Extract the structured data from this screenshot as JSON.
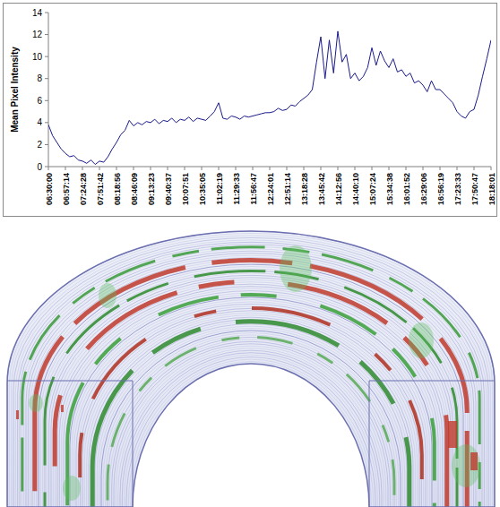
{
  "chart_data": {
    "type": "line",
    "y_label": "Mean Pixel Intensity",
    "color": "#1a1a8c",
    "grid": false,
    "ylim": [
      0,
      14
    ],
    "yticks": [
      0,
      2,
      4,
      6,
      8,
      10,
      12,
      14
    ],
    "categories": [
      "06:30:00",
      null,
      null,
      null,
      "06:57:14",
      null,
      null,
      null,
      "07:24:28",
      null,
      null,
      null,
      "07:51:42",
      null,
      null,
      null,
      "08:18:56",
      null,
      null,
      null,
      "08:46:09",
      null,
      null,
      null,
      "09:13:23",
      null,
      null,
      null,
      "09:40:37",
      null,
      null,
      null,
      "10:07:51",
      null,
      null,
      null,
      "10:35:05",
      null,
      null,
      null,
      "11:02:19",
      null,
      null,
      null,
      "11:29:33",
      null,
      null,
      null,
      "11:56:47",
      null,
      null,
      null,
      "12:24:01",
      null,
      null,
      null,
      "12:51:14",
      null,
      null,
      null,
      "13:18:28",
      null,
      null,
      null,
      "13:45:42",
      null,
      null,
      null,
      "14:12:56",
      null,
      null,
      null,
      "14:40:10",
      null,
      null,
      null,
      "15:07:24",
      null,
      null,
      null,
      "15:34:38",
      null,
      null,
      null,
      "16:01:52",
      null,
      null,
      null,
      "16:29:06",
      null,
      null,
      null,
      "16:56:19",
      null,
      null,
      null,
      "17:23:33",
      null,
      null,
      null,
      "17:50:47",
      null,
      null,
      null,
      "18:18:01"
    ],
    "values": [
      3.8,
      2.8,
      2.2,
      1.6,
      1.2,
      0.9,
      1.0,
      0.6,
      0.5,
      0.3,
      0.6,
      0.2,
      0.5,
      0.4,
      0.9,
      1.6,
      2.2,
      2.9,
      3.3,
      4.2,
      3.7,
      4.0,
      3.8,
      4.1,
      4.0,
      4.3,
      3.9,
      4.2,
      4.1,
      4.4,
      4.0,
      4.3,
      4.2,
      4.5,
      4.1,
      4.4,
      4.3,
      4.2,
      4.6,
      5.0,
      5.8,
      4.4,
      4.3,
      4.6,
      4.5,
      4.3,
      4.6,
      4.5,
      4.6,
      4.7,
      4.8,
      4.9,
      4.9,
      5.0,
      5.3,
      5.1,
      5.2,
      5.6,
      5.5,
      5.9,
      6.2,
      6.5,
      7.0,
      9.5,
      11.8,
      8.0,
      11.5,
      8.5,
      12.3,
      9.5,
      10.2,
      8.0,
      8.5,
      7.8,
      8.2,
      9.0,
      10.8,
      9.2,
      10.5,
      9.6,
      9.0,
      9.8,
      8.6,
      8.8,
      8.2,
      8.5,
      7.6,
      7.8,
      7.4,
      6.8,
      7.8,
      7.0,
      7.0,
      6.6,
      6.2,
      5.8,
      5.0,
      4.6,
      4.4,
      5.0,
      5.2,
      6.5,
      8.2,
      9.8,
      11.5
    ]
  }
}
